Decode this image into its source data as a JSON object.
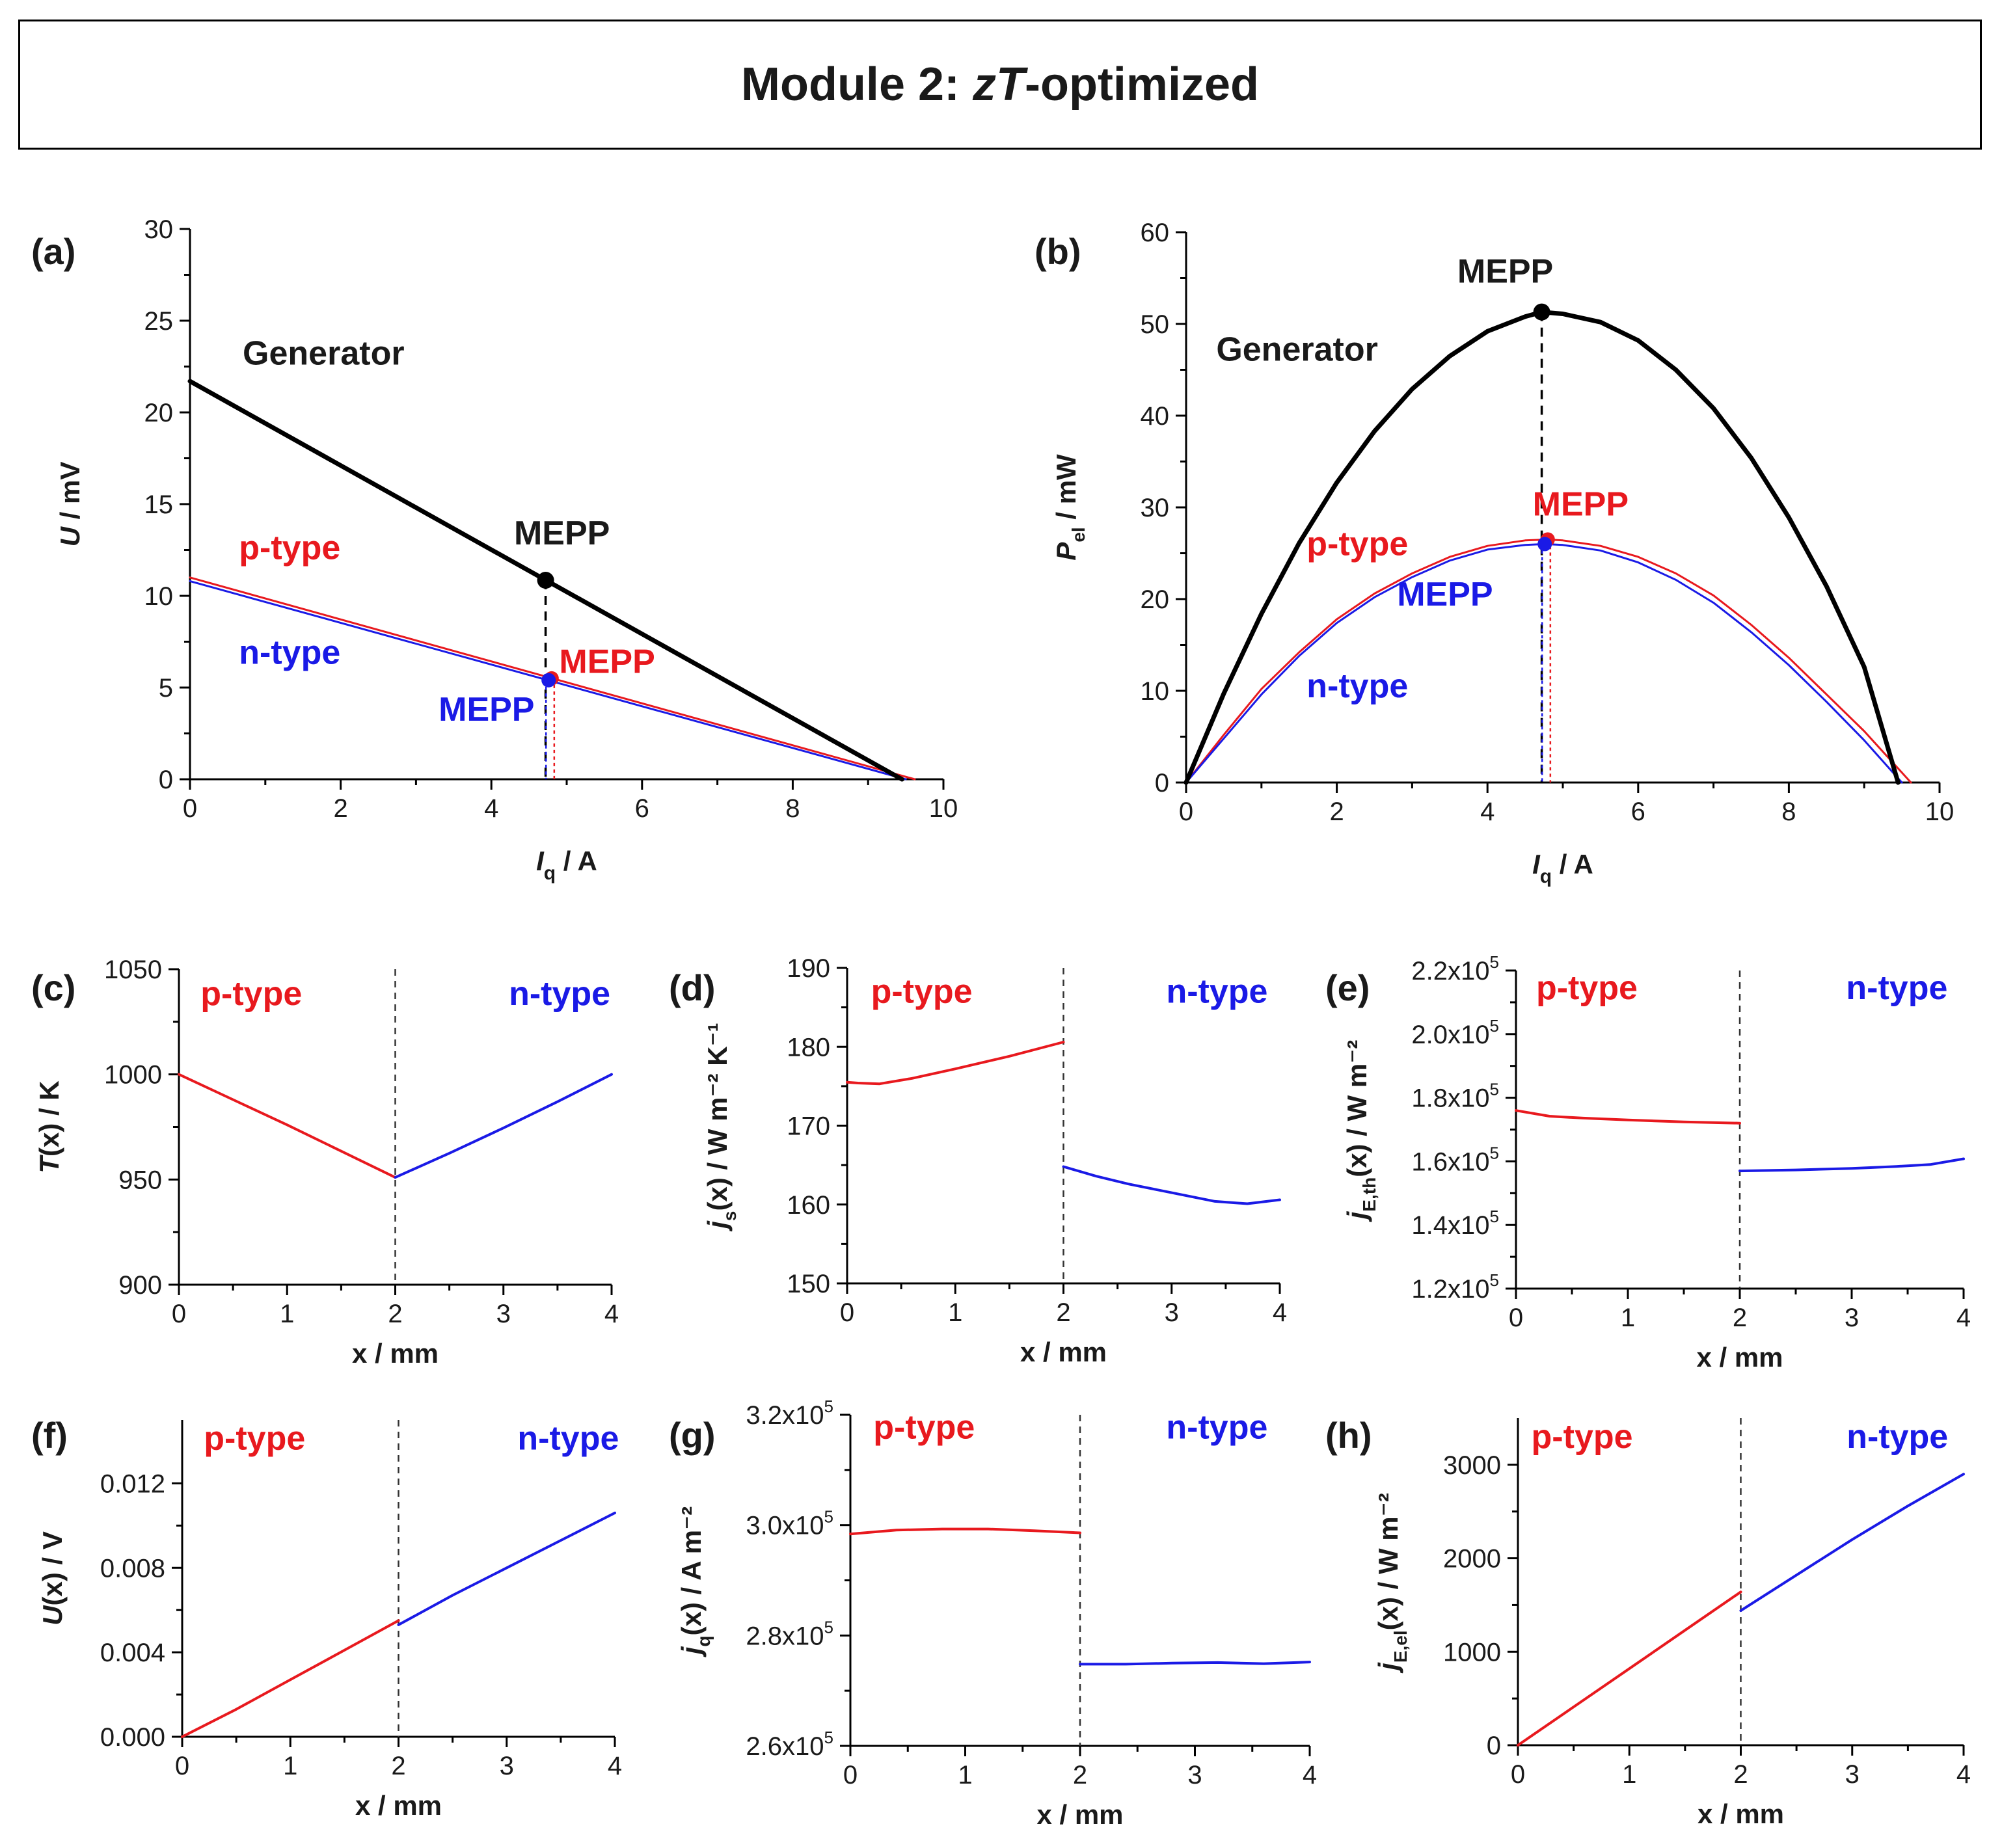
{
  "title": {
    "prefix": "Module 2: ",
    "italic": "zT",
    "suffix": "-optimized"
  },
  "colors": {
    "black": "#000000",
    "red": "#e8191e",
    "blue": "#1a1ae6"
  },
  "chart_data": [
    {
      "id": "a",
      "panel_label": "(a)",
      "type": "line",
      "xlabel": {
        "main": "I",
        "sub": "q",
        "rest": " / A"
      },
      "ylabel": {
        "main": "U",
        "sub": "",
        "rest": " / mV"
      },
      "xlim": [
        0,
        10
      ],
      "ylim": [
        0,
        30
      ],
      "xticks": [
        0,
        2,
        4,
        6,
        8,
        10
      ],
      "xtick_labels": [
        "0",
        "2",
        "4",
        "6",
        "8",
        "10"
      ],
      "yticks": [
        0,
        5,
        10,
        15,
        20,
        25,
        30
      ],
      "ytick_labels": [
        "0",
        "5",
        "10",
        "15",
        "20",
        "25",
        "30"
      ],
      "series": [
        {
          "name": "Generator",
          "color": "#000000",
          "width": 7,
          "x": [
            0,
            9.45
          ],
          "y": [
            21.7,
            0
          ]
        },
        {
          "name": "p-type",
          "color": "#e8191e",
          "width": 3,
          "x": [
            0,
            9.62
          ],
          "y": [
            11.0,
            0
          ]
        },
        {
          "name": "n-type",
          "color": "#1a1ae6",
          "width": 3,
          "x": [
            0,
            9.5
          ],
          "y": [
            10.8,
            0
          ]
        }
      ],
      "points": [
        {
          "name": "MEPP generator",
          "x": 4.72,
          "y": 10.85,
          "color": "#000000",
          "dash_to_axis": true,
          "dash": "14,10",
          "dash_color": "#000000"
        },
        {
          "name": "MEPP p-type",
          "x": 4.8,
          "y": 5.5,
          "color": "#e8191e",
          "dash_to_axis": true,
          "dash": "5,5",
          "dash_color": "#e8191e",
          "offset": 4
        },
        {
          "name": "MEPP n-type",
          "x": 4.76,
          "y": 5.4,
          "color": "#1a1ae6",
          "dash_to_axis": true,
          "dash": "5,5",
          "dash_color": "#1a1ae6",
          "offset": -4
        }
      ],
      "annotations": [
        {
          "text": "Generator",
          "x": 0.7,
          "y": 22.6,
          "color": "#1a1a1a"
        },
        {
          "text": "MEPP",
          "x": 4.3,
          "y": 12.8,
          "color": "#1a1a1a"
        },
        {
          "text": "p-type",
          "x": 0.65,
          "y": 12.0,
          "color": "#e8191e"
        },
        {
          "text": "n-type",
          "x": 0.65,
          "y": 6.3,
          "color": "#1a1ae6"
        },
        {
          "text": "MEPP",
          "x": 4.9,
          "y": 5.8,
          "color": "#e8191e"
        },
        {
          "text": "MEPP",
          "x": 3.3,
          "y": 3.2,
          "color": "#1a1ae6"
        }
      ]
    },
    {
      "id": "b",
      "panel_label": "(b)",
      "type": "line",
      "xlabel": {
        "main": "I",
        "sub": "q",
        "rest": " / A"
      },
      "ylabel": {
        "main": "P",
        "sub": "el",
        "rest": " / mW"
      },
      "xlim": [
        0,
        10
      ],
      "ylim": [
        0,
        60
      ],
      "xticks": [
        0,
        2,
        4,
        6,
        8,
        10
      ],
      "xtick_labels": [
        "0",
        "2",
        "4",
        "6",
        "8",
        "10"
      ],
      "yticks": [
        0,
        10,
        20,
        30,
        40,
        50,
        60
      ],
      "ytick_labels": [
        "0",
        "10",
        "20",
        "30",
        "40",
        "50",
        "60"
      ],
      "series": [
        {
          "name": "Generator",
          "color": "#000000",
          "width": 7,
          "x": [
            0,
            0.5,
            1,
            1.5,
            2,
            2.5,
            3,
            3.5,
            4,
            4.5,
            4.72,
            5,
            5.5,
            6,
            6.5,
            7,
            7.5,
            8,
            8.5,
            9,
            9.45
          ],
          "y": [
            0,
            9.7,
            18.4,
            26.1,
            32.7,
            38.3,
            42.9,
            46.5,
            49.2,
            50.8,
            51.3,
            51.1,
            50.2,
            48.2,
            45.0,
            40.8,
            35.4,
            28.9,
            21.4,
            12.6,
            0
          ]
        },
        {
          "name": "p-type",
          "color": "#e8191e",
          "width": 3,
          "x": [
            0,
            0.5,
            1,
            1.5,
            2,
            2.5,
            3,
            3.5,
            4,
            4.5,
            4.8,
            5,
            5.5,
            6,
            6.5,
            7,
            7.5,
            8,
            8.5,
            9,
            9.62
          ],
          "y": [
            0,
            5.2,
            10.2,
            14.2,
            17.8,
            20.6,
            22.8,
            24.6,
            25.8,
            26.4,
            26.5,
            26.4,
            25.8,
            24.6,
            22.8,
            20.4,
            17.2,
            13.6,
            9.6,
            5.6,
            0
          ]
        },
        {
          "name": "n-type",
          "color": "#1a1ae6",
          "width": 3,
          "x": [
            0,
            0.5,
            1,
            1.5,
            2,
            2.5,
            3,
            3.5,
            4,
            4.5,
            4.76,
            5,
            5.5,
            6,
            6.5,
            7,
            7.5,
            8,
            8.5,
            9,
            9.5
          ],
          "y": [
            0,
            4.8,
            9.6,
            13.8,
            17.4,
            20.2,
            22.4,
            24.2,
            25.4,
            25.9,
            26.0,
            25.9,
            25.3,
            24.0,
            22.1,
            19.6,
            16.4,
            12.8,
            8.8,
            4.6,
            0
          ]
        }
      ],
      "points": [
        {
          "name": "MEPP generator",
          "x": 4.72,
          "y": 51.3,
          "color": "#000000",
          "dash_to_axis": true,
          "dash": "14,10",
          "dash_color": "#000000"
        },
        {
          "name": "MEPP p-type",
          "x": 4.8,
          "y": 26.5,
          "color": "#e8191e",
          "dash_to_axis": true,
          "dash": "5,5",
          "dash_color": "#e8191e",
          "offset": 4
        },
        {
          "name": "MEPP n-type",
          "x": 4.76,
          "y": 26.0,
          "color": "#1a1ae6",
          "dash_to_axis": true,
          "dash": "5,5",
          "dash_color": "#1a1ae6",
          "offset": -4
        }
      ],
      "annotations": [
        {
          "text": "MEPP",
          "x": 3.6,
          "y": 54.5,
          "color": "#1a1a1a"
        },
        {
          "text": "Generator",
          "x": 0.4,
          "y": 46.0,
          "color": "#1a1a1a"
        },
        {
          "text": "MEPP",
          "x": 4.6,
          "y": 29.1,
          "color": "#e8191e"
        },
        {
          "text": "p-type",
          "x": 1.6,
          "y": 24.8,
          "color": "#e8191e"
        },
        {
          "text": "MEPP",
          "x": 2.8,
          "y": 19.3,
          "color": "#1a1ae6"
        },
        {
          "text": "n-type",
          "x": 1.6,
          "y": 9.3,
          "color": "#1a1ae6"
        }
      ]
    },
    {
      "id": "c",
      "panel_label": "(c)",
      "type": "line",
      "xlabel": {
        "main": "x",
        "sub": "",
        "rest": " / mm"
      },
      "ylabel": {
        "main": "T",
        "sub": "",
        "rest": "(x) / K"
      },
      "xlim": [
        0,
        4
      ],
      "ylim": [
        900,
        1050
      ],
      "xticks": [
        0,
        1,
        2,
        3,
        4
      ],
      "xtick_labels": [
        "0",
        "1",
        "2",
        "3",
        "4"
      ],
      "yticks": [
        900,
        950,
        1000,
        1050
      ],
      "ytick_labels": [
        "900",
        "950",
        "1000",
        "1050"
      ],
      "divider_x": 2,
      "series": [
        {
          "name": "p-type",
          "color": "#e8191e",
          "width": 4,
          "x": [
            0,
            0.5,
            1,
            1.5,
            2
          ],
          "y": [
            1000,
            988,
            976,
            963.5,
            951
          ]
        },
        {
          "name": "n-type",
          "color": "#1a1ae6",
          "width": 4,
          "x": [
            2,
            2.5,
            3,
            3.5,
            4
          ],
          "y": [
            951,
            962.5,
            974.5,
            987,
            1000
          ]
        }
      ],
      "annotations": [
        {
          "text": "p-type",
          "x": 0.2,
          "y": 1033,
          "color": "#e8191e"
        },
        {
          "text": "n-type",
          "x": 3.05,
          "y": 1033,
          "color": "#1a1ae6"
        }
      ]
    },
    {
      "id": "d",
      "panel_label": "(d)",
      "type": "line",
      "xlabel": {
        "main": "x",
        "sub": "",
        "rest": " / mm"
      },
      "ylabel": {
        "main": "j",
        "sub": "s",
        "rest": "(x) / W m⁻² K⁻¹"
      },
      "xlim": [
        0,
        4
      ],
      "ylim": [
        150,
        190
      ],
      "xticks": [
        0,
        1,
        2,
        3,
        4
      ],
      "xtick_labels": [
        "0",
        "1",
        "2",
        "3",
        "4"
      ],
      "yticks": [
        150,
        160,
        170,
        180,
        190
      ],
      "ytick_labels": [
        "150",
        "160",
        "170",
        "180",
        "190"
      ],
      "divider_x": 2,
      "series": [
        {
          "name": "p-type",
          "color": "#e8191e",
          "width": 4,
          "x": [
            0,
            0.1,
            0.3,
            0.6,
            1,
            1.5,
            2
          ],
          "y": [
            175.5,
            175.4,
            175.3,
            176.0,
            177.2,
            178.8,
            180.6
          ]
        },
        {
          "name": "n-type",
          "color": "#1a1ae6",
          "width": 4,
          "x": [
            2,
            2.3,
            2.6,
            3,
            3.4,
            3.7,
            4
          ],
          "y": [
            164.8,
            163.6,
            162.6,
            161.5,
            160.4,
            160.1,
            160.6
          ]
        }
      ],
      "annotations": [
        {
          "text": "p-type",
          "x": 0.22,
          "y": 185.6,
          "color": "#e8191e"
        },
        {
          "text": "n-type",
          "x": 2.95,
          "y": 185.6,
          "color": "#1a1ae6"
        }
      ]
    },
    {
      "id": "e",
      "panel_label": "(e)",
      "type": "line",
      "xlabel": {
        "main": "x",
        "sub": "",
        "rest": " / mm"
      },
      "ylabel": {
        "main": "j",
        "sub": "E,th",
        "rest": "(x) / W m⁻²"
      },
      "xlim": [
        0,
        4
      ],
      "ylim": [
        120000,
        220000
      ],
      "xticks": [
        0,
        1,
        2,
        3,
        4
      ],
      "xtick_labels": [
        "0",
        "1",
        "2",
        "3",
        "4"
      ],
      "yticks": [
        120000,
        140000,
        160000,
        180000,
        200000,
        220000
      ],
      "ytick_labels": [
        {
          "m": "1.2x10",
          "e": "5"
        },
        {
          "m": "1.4x10",
          "e": "5"
        },
        {
          "m": "1.6x10",
          "e": "5"
        },
        {
          "m": "1.8x10",
          "e": "5"
        },
        {
          "m": "2.0x10",
          "e": "5"
        },
        {
          "m": "2.2x10",
          "e": "5"
        }
      ],
      "divider_x": 2,
      "series": [
        {
          "name": "p-type",
          "color": "#e8191e",
          "width": 4,
          "x": [
            0,
            0.3,
            0.6,
            1,
            1.5,
            2
          ],
          "y": [
            176000,
            174200,
            173600,
            173000,
            172400,
            172000
          ]
        },
        {
          "name": "n-type",
          "color": "#1a1ae6",
          "width": 4,
          "x": [
            2,
            2.5,
            3,
            3.4,
            3.7,
            4
          ],
          "y": [
            157000,
            157300,
            157800,
            158400,
            159000,
            160800
          ]
        }
      ],
      "annotations": [
        {
          "text": "p-type",
          "x": 0.18,
          "y": 211000,
          "color": "#e8191e"
        },
        {
          "text": "n-type",
          "x": 2.95,
          "y": 211000,
          "color": "#1a1ae6"
        }
      ]
    },
    {
      "id": "f",
      "panel_label": "(f)",
      "type": "line",
      "xlabel": {
        "main": "x",
        "sub": "",
        "rest": " / mm"
      },
      "ylabel": {
        "main": "U",
        "sub": "",
        "rest": "(x) / V"
      },
      "xlim": [
        0,
        4
      ],
      "ylim": [
        0,
        0.015
      ],
      "xticks": [
        0,
        1,
        2,
        3,
        4
      ],
      "xtick_labels": [
        "0",
        "1",
        "2",
        "3",
        "4"
      ],
      "yticks": [
        0,
        0.004,
        0.008,
        0.012
      ],
      "ytick_labels": [
        "0.000",
        "0.004",
        "0.008",
        "0.012"
      ],
      "divider_x": 2,
      "series": [
        {
          "name": "p-type",
          "color": "#e8191e",
          "width": 4,
          "x": [
            0,
            0.5,
            1,
            1.5,
            2
          ],
          "y": [
            0,
            0.0013,
            0.0027,
            0.0041,
            0.0055
          ]
        },
        {
          "name": "n-type",
          "color": "#1a1ae6",
          "width": 4,
          "x": [
            2,
            2.5,
            3,
            3.5,
            4
          ],
          "y": [
            0.0053,
            0.0067,
            0.008,
            0.0093,
            0.0106
          ]
        }
      ],
      "annotations": [
        {
          "text": "p-type",
          "x": 0.2,
          "y": 0.0136,
          "color": "#e8191e"
        },
        {
          "text": "n-type",
          "x": 3.1,
          "y": 0.0136,
          "color": "#1a1ae6"
        }
      ]
    },
    {
      "id": "g",
      "panel_label": "(g)",
      "type": "line",
      "xlabel": {
        "main": "x",
        "sub": "",
        "rest": " / mm"
      },
      "ylabel": {
        "main": "j",
        "sub": "q",
        "rest": "(x) / A m⁻²"
      },
      "xlim": [
        0,
        4
      ],
      "ylim": [
        260000,
        320000
      ],
      "xticks": [
        0,
        1,
        2,
        3,
        4
      ],
      "xtick_labels": [
        "0",
        "1",
        "2",
        "3",
        "4"
      ],
      "yticks": [
        260000,
        280000,
        300000,
        320000
      ],
      "ytick_labels": [
        {
          "m": "2.6x10",
          "e": "5"
        },
        {
          "m": "2.8x10",
          "e": "5"
        },
        {
          "m": "3.0x10",
          "e": "5"
        },
        {
          "m": "3.2x10",
          "e": "5"
        }
      ],
      "divider_x": 2,
      "series": [
        {
          "name": "p-type",
          "color": "#e8191e",
          "width": 4,
          "x": [
            0,
            0.4,
            0.8,
            1.2,
            1.6,
            2
          ],
          "y": [
            298400,
            299100,
            299300,
            299300,
            299000,
            298600
          ]
        },
        {
          "name": "n-type",
          "color": "#1a1ae6",
          "width": 4,
          "x": [
            2,
            2.4,
            2.8,
            3.2,
            3.6,
            4
          ],
          "y": [
            274800,
            274800,
            275000,
            275100,
            274900,
            275200
          ]
        }
      ],
      "annotations": [
        {
          "text": "p-type",
          "x": 0.2,
          "y": 315700,
          "color": "#e8191e"
        },
        {
          "text": "n-type",
          "x": 2.75,
          "y": 315700,
          "color": "#1a1ae6"
        }
      ]
    },
    {
      "id": "h",
      "panel_label": "(h)",
      "type": "line",
      "xlabel": {
        "main": "x",
        "sub": "",
        "rest": " / mm"
      },
      "ylabel": {
        "main": "j",
        "sub": "E,el",
        "rest": "(x) / W m⁻²"
      },
      "xlim": [
        0,
        4
      ],
      "ylim": [
        0,
        3500
      ],
      "xticks": [
        0,
        1,
        2,
        3,
        4
      ],
      "xtick_labels": [
        "0",
        "1",
        "2",
        "3",
        "4"
      ],
      "yticks": [
        0,
        1000,
        2000,
        3000
      ],
      "ytick_labels": [
        "0",
        "1000",
        "2000",
        "3000"
      ],
      "divider_x": 2,
      "series": [
        {
          "name": "p-type",
          "color": "#e8191e",
          "width": 4,
          "x": [
            0,
            0.5,
            1,
            1.5,
            2
          ],
          "y": [
            0,
            410,
            820,
            1230,
            1640
          ]
        },
        {
          "name": "n-type",
          "color": "#1a1ae6",
          "width": 4,
          "x": [
            2,
            2.5,
            3,
            3.5,
            4
          ],
          "y": [
            1440,
            1820,
            2200,
            2560,
            2900
          ]
        }
      ],
      "annotations": [
        {
          "text": "p-type",
          "x": 0.12,
          "y": 3180,
          "color": "#e8191e"
        },
        {
          "text": "n-type",
          "x": 2.95,
          "y": 3180,
          "color": "#1a1ae6"
        }
      ]
    }
  ]
}
